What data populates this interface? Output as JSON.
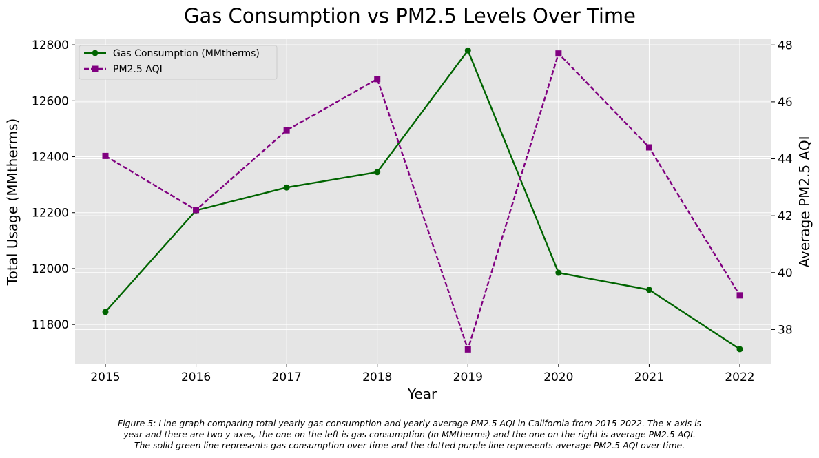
{
  "chart_data": {
    "type": "line",
    "title": "Gas Consumption vs PM2.5 Levels Over Time",
    "xlabel": "Year",
    "ylabel_left": "Total Usage (MMtherms)",
    "ylabel_right": "Average PM2.5 AQI",
    "x": [
      2015,
      2016,
      2017,
      2018,
      2019,
      2020,
      2021,
      2022
    ],
    "x_tick_labels": [
      "2015",
      "2016",
      "2017",
      "2018",
      "2019",
      "2020",
      "2021",
      "2022"
    ],
    "ylim_left": [
      11660,
      12820
    ],
    "ylim_right": [
      36.8,
      48.2
    ],
    "y_ticks_left": [
      11800,
      12000,
      12200,
      12400,
      12600,
      12800
    ],
    "y_ticks_right": [
      38,
      40,
      42,
      44,
      46,
      48
    ],
    "grid": true,
    "legend_position": "top-left",
    "series": [
      {
        "name": "Gas Consumption (MMtherms)",
        "axis": "left",
        "style": "solid",
        "marker": "circle",
        "color": "#006400",
        "values": [
          11845,
          12208,
          12290,
          12345,
          12780,
          11985,
          11924,
          11712
        ]
      },
      {
        "name": "PM2.5 AQI",
        "axis": "right",
        "style": "dashed",
        "marker": "square",
        "color": "#800080",
        "values": [
          44.1,
          42.2,
          45.0,
          46.8,
          37.3,
          47.7,
          44.4,
          39.2
        ]
      }
    ]
  },
  "caption": {
    "lines": [
      "Figure 5: Line graph comparing total yearly gas consumption and yearly average PM2.5 AQI in California from 2015-2022. The x-axis is",
      "year and there are two y-axes, the one on the left is gas consumption (in MMtherms) and the one on the right is average PM2.5 AQI.",
      "The solid green line represents gas consumption over time and the dotted purple line represents average PM2.5 AQI over time."
    ]
  }
}
